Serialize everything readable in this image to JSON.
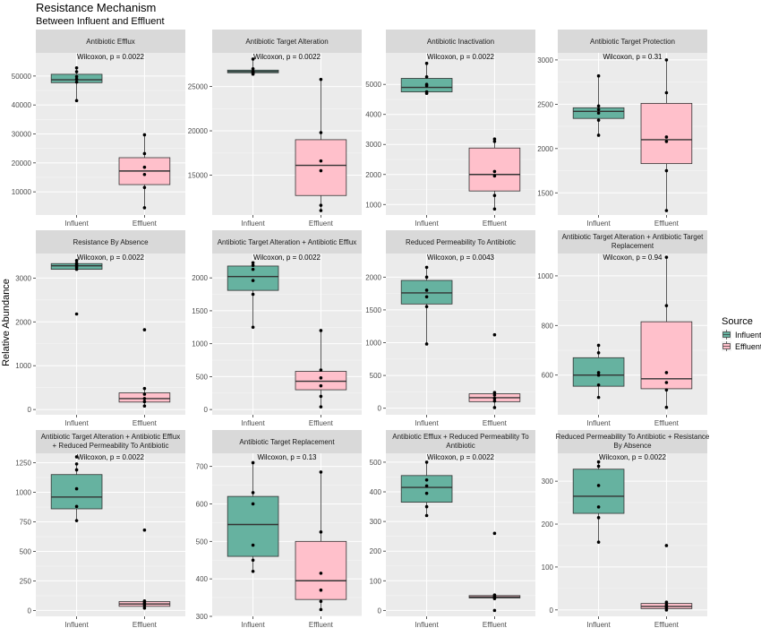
{
  "chart_data": {
    "type": "boxplot",
    "title": "Resistance Mechanism",
    "subtitle": "Between Influent and Effluent",
    "ylabel": "Relative Abundance",
    "categories": [
      "Influent",
      "Effluent"
    ],
    "legend": {
      "title": "Source",
      "position": "right",
      "items": [
        {
          "label": "Influent",
          "color": "#66b2a0"
        },
        {
          "label": "Effluent",
          "color": "#ffc0cb"
        }
      ]
    },
    "panels": [
      {
        "title": [
          "Antibiotic Efflux"
        ],
        "annotation": "Wilcoxon, p = 0.0022",
        "ylim": [
          2000,
          58000
        ],
        "yticks": [
          10000,
          20000,
          30000,
          40000,
          50000
        ],
        "ytick_labels": [
          "10000",
          "20000",
          "30000",
          "40000",
          "50000"
        ],
        "boxes": [
          {
            "whisker_low": 41500,
            "q1": 47700,
            "median": 48700,
            "q3": 50600,
            "whisker_high": 52800,
            "points": [
              41500,
              47900,
              48900,
              49800,
              51500,
              52800
            ]
          },
          {
            "whisker_low": 4500,
            "q1": 12500,
            "median": 17200,
            "q3": 21800,
            "whisker_high": 29700,
            "points": [
              4500,
              11500,
              16000,
              18500,
              23200,
              29700
            ]
          }
        ]
      },
      {
        "title": [
          "Antibiotic Target Alteration"
        ],
        "annotation": "Wilcoxon, p = 0.0022",
        "ylim": [
          10500,
          28800
        ],
        "yticks": [
          15000,
          20000,
          25000
        ],
        "ytick_labels": [
          "15000",
          "20000",
          "25000"
        ],
        "boxes": [
          {
            "whisker_low": 26400,
            "q1": 26550,
            "median": 26700,
            "q3": 26850,
            "whisker_high": 28100,
            "points": [
              26400,
              26500,
              26600,
              26700,
              27000,
              28100
            ]
          },
          {
            "whisker_low": 11000,
            "q1": 12700,
            "median": 16100,
            "q3": 19000,
            "whisker_high": 25800,
            "points": [
              11000,
              11600,
              15500,
              16600,
              19800,
              25800
            ]
          }
        ]
      },
      {
        "title": [
          "Antibiotic Inactivation"
        ],
        "annotation": "Wilcoxon, p = 0.0022",
        "ylim": [
          650,
          6050
        ],
        "yticks": [
          1000,
          2000,
          3000,
          4000,
          5000
        ],
        "ytick_labels": [
          "1000",
          "2000",
          "3000",
          "4000",
          "5000"
        ],
        "boxes": [
          {
            "whisker_low": 4700,
            "q1": 4750,
            "median": 4900,
            "q3": 5200,
            "whisker_high": 5700,
            "points": [
              4700,
              4750,
              4950,
              5000,
              5250,
              5700
            ]
          },
          {
            "whisker_low": 850,
            "q1": 1450,
            "median": 2000,
            "q3": 2880,
            "whisker_high": 3180,
            "points": [
              850,
              1300,
              1950,
              2100,
              3100,
              3180
            ]
          }
        ]
      },
      {
        "title": [
          "Antibiotic Target Protection"
        ],
        "annotation": "Wilcoxon, p = 0.31",
        "ylim": [
          1250,
          3080
        ],
        "yticks": [
          1500,
          2000,
          2500,
          3000
        ],
        "ytick_labels": [
          "1500",
          "2000",
          "2500",
          "3000"
        ],
        "boxes": [
          {
            "whisker_low": 2150,
            "q1": 2340,
            "median": 2420,
            "q3": 2460,
            "whisker_high": 2820,
            "points": [
              2150,
              2320,
              2400,
              2440,
              2480,
              2820
            ]
          },
          {
            "whisker_low": 1300,
            "q1": 1830,
            "median": 2100,
            "q3": 2510,
            "whisker_high": 3000,
            "points": [
              1300,
              1750,
              2080,
              2130,
              2630,
              3000
            ]
          }
        ]
      },
      {
        "title": [
          "Resistance By Absence"
        ],
        "annotation": "Wilcoxon, p = 0.0022",
        "ylim": [
          -120,
          3560
        ],
        "yticks": [
          0,
          1000,
          2000,
          3000
        ],
        "ytick_labels": [
          "0",
          "1000",
          "2000",
          "3000"
        ],
        "boxes": [
          {
            "whisker_low": 3180,
            "q1": 3200,
            "median": 3280,
            "q3": 3330,
            "whisker_high": 3400,
            "points": [
              2180,
              3200,
              3250,
              3300,
              3340,
              3400
            ]
          },
          {
            "whisker_low": 80,
            "q1": 170,
            "median": 250,
            "q3": 380,
            "whisker_high": 480,
            "points": [
              80,
              180,
              250,
              350,
              480,
              1820
            ]
          }
        ]
      },
      {
        "title": [
          "Antibiotic Target Alteration + Antibiotic Efflux"
        ],
        "annotation": "Wilcoxon, p = 0.0022",
        "ylim": [
          -80,
          2370
        ],
        "yticks": [
          0,
          500,
          1000,
          1500,
          2000
        ],
        "ytick_labels": [
          "0",
          "500",
          "1000",
          "1500",
          "2000"
        ],
        "boxes": [
          {
            "whisker_low": 1250,
            "q1": 1810,
            "median": 2020,
            "q3": 2180,
            "whisker_high": 2230,
            "points": [
              1250,
              1750,
              1960,
              2130,
              2190,
              2230
            ]
          },
          {
            "whisker_low": 40,
            "q1": 300,
            "median": 430,
            "q3": 580,
            "whisker_high": 1200,
            "points": [
              40,
              200,
              360,
              480,
              600,
              1200
            ]
          }
        ]
      },
      {
        "title": [
          "Reduced Permeability To Antibiotic"
        ],
        "annotation": "Wilcoxon, p = 0.0043",
        "ylim": [
          -100,
          2360
        ],
        "yticks": [
          0,
          500,
          1000,
          1500,
          2000
        ],
        "ytick_labels": [
          "0",
          "500",
          "1000",
          "1500",
          "2000"
        ],
        "boxes": [
          {
            "whisker_low": 980,
            "q1": 1590,
            "median": 1760,
            "q3": 1950,
            "whisker_high": 2150,
            "points": [
              980,
              1550,
              1700,
              1800,
              2000,
              2150
            ]
          },
          {
            "whisker_low": 10,
            "q1": 100,
            "median": 160,
            "q3": 220,
            "whisker_high": 240,
            "points": [
              10,
              110,
              150,
              200,
              240,
              1120
            ]
          }
        ]
      },
      {
        "title": [
          "Antibiotic Target Alteration + Antibiotic Target",
          "Replacement"
        ],
        "annotation": "Wilcoxon, p = 0.94",
        "ylim": [
          440,
          1090
        ],
        "yticks": [
          600,
          800,
          1000
        ],
        "ytick_labels": [
          "600",
          "800",
          "1000"
        ],
        "boxes": [
          {
            "whisker_low": 510,
            "q1": 555,
            "median": 600,
            "q3": 670,
            "whisker_high": 720,
            "points": [
              510,
              560,
              600,
              610,
              690,
              720
            ]
          },
          {
            "whisker_low": 470,
            "q1": 545,
            "median": 585,
            "q3": 815,
            "whisker_high": 1075,
            "points": [
              470,
              540,
              570,
              610,
              880,
              1075
            ]
          }
        ]
      },
      {
        "title": [
          "Antibiotic Target Alteration + Antibiotic Efflux",
          "+ Reduced Permeability To Antibiotic"
        ],
        "annotation": "Wilcoxon, p = 0.0022",
        "ylim": [
          -50,
          1330
        ],
        "yticks": [
          0,
          250,
          500,
          750,
          1000,
          1250
        ],
        "ytick_labels": [
          "0",
          "250",
          "500",
          "750",
          "1000",
          "1250"
        ],
        "boxes": [
          {
            "whisker_low": 760,
            "q1": 860,
            "median": 960,
            "q3": 1150,
            "whisker_high": 1240,
            "points": [
              760,
              880,
              1030,
              1190,
              1240,
              1300
            ]
          },
          {
            "whisker_low": 20,
            "q1": 35,
            "median": 55,
            "q3": 75,
            "whisker_high": 80,
            "points": [
              20,
              40,
              55,
              65,
              80,
              680
            ]
          }
        ]
      },
      {
        "title": [
          "Antibiotic Target Replacement"
        ],
        "annotation": "Wilcoxon, p = 0.13",
        "ylim": [
          300,
          735
        ],
        "yticks": [
          300,
          400,
          500,
          600,
          700
        ],
        "ytick_labels": [
          "300",
          "400",
          "500",
          "600",
          "700"
        ],
        "boxes": [
          {
            "whisker_low": 420,
            "q1": 460,
            "median": 545,
            "q3": 620,
            "whisker_high": 710,
            "points": [
              420,
              450,
              490,
              600,
              630,
              710
            ]
          },
          {
            "whisker_low": 318,
            "q1": 345,
            "median": 395,
            "q3": 500,
            "whisker_high": 685,
            "points": [
              318,
              340,
              370,
              415,
              525,
              685
            ]
          }
        ]
      },
      {
        "title": [
          "Antibiotic Efflux + Reduced Permeability To",
          "Antibiotic"
        ],
        "annotation": "Wilcoxon, p = 0.0022",
        "ylim": [
          -20,
          530
        ],
        "yticks": [
          0,
          100,
          200,
          300,
          400,
          500
        ],
        "ytick_labels": [
          "0",
          "100",
          "200",
          "300",
          "400",
          "500"
        ],
        "boxes": [
          {
            "whisker_low": 320,
            "q1": 365,
            "median": 415,
            "q3": 455,
            "whisker_high": 500,
            "points": [
              320,
              350,
              395,
              420,
              440,
              500
            ]
          },
          {
            "whisker_low": 40,
            "q1": 42,
            "median": 45,
            "q3": 50,
            "whisker_high": 52,
            "points": [
              0,
              40,
              45,
              48,
              52,
              260
            ]
          }
        ]
      },
      {
        "title": [
          "Reduced Permeability To Antibiotic + Resistance",
          "By Absence"
        ],
        "annotation": "Wilcoxon, p = 0.0022",
        "ylim": [
          -15,
          365
        ],
        "yticks": [
          0,
          100,
          200,
          300
        ],
        "ytick_labels": [
          "0",
          "100",
          "200",
          "300"
        ],
        "boxes": [
          {
            "whisker_low": 158,
            "q1": 225,
            "median": 265,
            "q3": 328,
            "whisker_high": 345,
            "points": [
              158,
              215,
              240,
              290,
              335,
              345
            ]
          },
          {
            "whisker_low": 0,
            "q1": 3,
            "median": 8,
            "q3": 15,
            "whisker_high": 18,
            "points": [
              0,
              5,
              8,
              12,
              18,
              150
            ]
          }
        ]
      }
    ]
  }
}
